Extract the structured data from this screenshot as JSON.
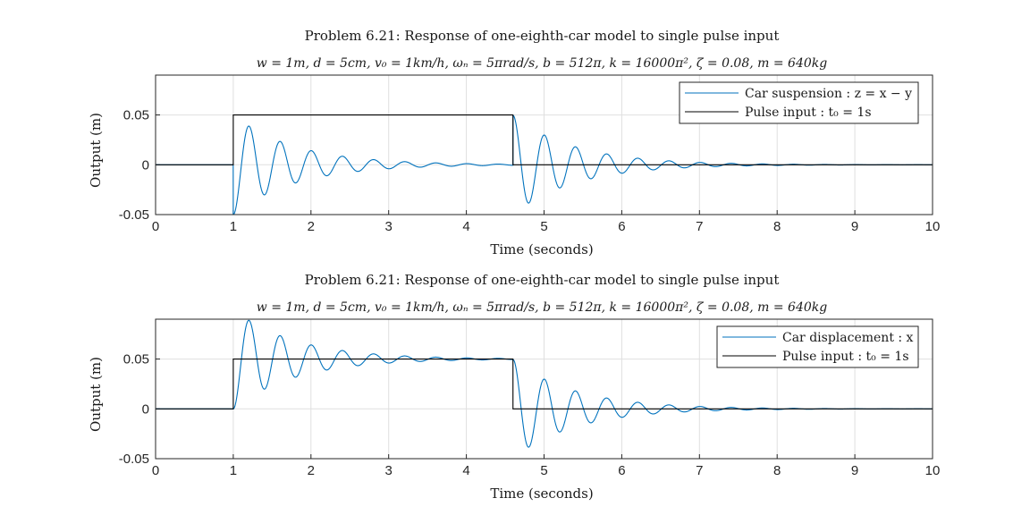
{
  "chart_data": [
    {
      "type": "line",
      "title": "Problem 6.21: Response of one-eighth-car model to single pulse input",
      "subtitle": "w = 1m, d = 5cm, v₀ = 1km/h, ωₙ = 5πrad/s, b = 512π, k = 16000π², ζ = 0.08, m = 640kg",
      "xlabel": "Time (seconds)",
      "ylabel": "Output (m)",
      "xlim": [
        0,
        10
      ],
      "ylim": [
        -0.05,
        0.09
      ],
      "xticks": [
        "0",
        "1",
        "2",
        "3",
        "4",
        "5",
        "6",
        "7",
        "8",
        "9",
        "10"
      ],
      "yticks": [
        "-0.05",
        "0",
        "0.05"
      ],
      "grid": true,
      "legend_position": "top-right",
      "response": "suspension",
      "series": [
        {
          "name": "Car suspension : z = x − y",
          "color": "#0072BD"
        },
        {
          "name": "Pulse input : t₀ = 1s",
          "color": "#000000"
        }
      ],
      "pulse": {
        "start": 1.0,
        "end": 4.6,
        "height": 0.05
      },
      "system": {
        "wn_rad_s": 15.708,
        "zeta": 0.08
      }
    },
    {
      "type": "line",
      "title": "Problem 6.21: Response of one-eighth-car model to single pulse input",
      "subtitle": "w = 1m, d = 5cm, v₀ = 1km/h, ωₙ = 5πrad/s, b = 512π, k = 16000π², ζ = 0.08, m = 640kg",
      "xlabel": "Time (seconds)",
      "ylabel": "Output (m)",
      "xlim": [
        0,
        10
      ],
      "ylim": [
        -0.05,
        0.09
      ],
      "xticks": [
        "0",
        "1",
        "2",
        "3",
        "4",
        "5",
        "6",
        "7",
        "8",
        "9",
        "10"
      ],
      "yticks": [
        "-0.05",
        "0",
        "0.05"
      ],
      "grid": true,
      "legend_position": "top-right",
      "response": "displacement",
      "series": [
        {
          "name": "Car displacement : x",
          "color": "#0072BD"
        },
        {
          "name": "Pulse input : t₀ = 1s",
          "color": "#000000"
        }
      ],
      "pulse": {
        "start": 1.0,
        "end": 4.6,
        "height": 0.05
      },
      "system": {
        "wn_rad_s": 15.708,
        "zeta": 0.08
      }
    }
  ]
}
